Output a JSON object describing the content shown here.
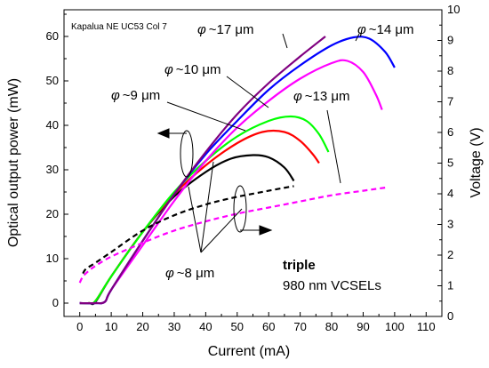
{
  "chart_data": {
    "type": "line",
    "sample_label": "Kapalua NE UC53 Col 7",
    "xlabel": "Current (mA)",
    "ylabel_left": "Optical output power (mW)",
    "ylabel_right": "Voltage (V)",
    "xlim": [
      -5,
      115
    ],
    "ylim_left": [
      -3,
      66
    ],
    "ylim_right": [
      0,
      10
    ],
    "x_ticks": [
      0,
      10,
      20,
      30,
      40,
      50,
      60,
      70,
      80,
      90,
      100,
      110
    ],
    "y_left_ticks": [
      0,
      10,
      20,
      30,
      40,
      50,
      60
    ],
    "y_right_ticks": [
      0,
      1,
      2,
      3,
      4,
      5,
      6,
      7,
      8,
      9,
      10
    ],
    "phi_symbol": "φ",
    "annotations": {
      "d8": {
        "label": "~8 μm"
      },
      "d9": {
        "label": "~9 μm"
      },
      "d10": {
        "label": "~10 μm"
      },
      "d13": {
        "label": "~13 μm"
      },
      "d14": {
        "label": "~14 μm"
      },
      "d17": {
        "label": "~17 μm"
      }
    },
    "note_line1": "triple",
    "note_line2": "980 nm VCSELs",
    "colors": {
      "d8": "#000000",
      "d9": "#ff0000",
      "d10": "#00ff00",
      "d13": "#ff00ff",
      "d14": "#0000ff",
      "d17": "#800080"
    },
    "series_power": [
      {
        "key": "d8",
        "x": [
          0,
          3,
          5,
          10,
          20,
          30,
          40,
          48,
          55,
          60,
          65,
          68
        ],
        "y": [
          0,
          0,
          0.3,
          6,
          16,
          24,
          29.5,
          32.5,
          33.3,
          32.8,
          30.5,
          27.5
        ]
      },
      {
        "key": "d9",
        "x": [
          0,
          3,
          5,
          10,
          20,
          30,
          40,
          50,
          58,
          65,
          70,
          74,
          76
        ],
        "y": [
          0,
          0,
          0.5,
          6,
          16,
          24.5,
          31,
          36,
          38.5,
          38.5,
          36.5,
          33.5,
          31.5
        ]
      },
      {
        "key": "d10",
        "x": [
          0,
          3,
          5,
          10,
          20,
          30,
          40,
          50,
          60,
          67,
          72,
          76,
          79
        ],
        "y": [
          0,
          0,
          0.5,
          6,
          16,
          25,
          32,
          37.5,
          41,
          42,
          41,
          38,
          34
        ]
      },
      {
        "key": "d13",
        "x": [
          0,
          5,
          8,
          10,
          20,
          30,
          40,
          50,
          60,
          70,
          80,
          85,
          90,
          94,
          96
        ],
        "y": [
          0,
          0,
          0.3,
          3,
          13,
          23,
          32,
          39.5,
          45.5,
          50.5,
          54,
          54.5,
          52,
          47,
          43.5
        ]
      },
      {
        "key": "d14",
        "x": [
          0,
          5,
          8,
          10,
          20,
          30,
          40,
          50,
          60,
          70,
          80,
          87,
          92,
          97,
          100
        ],
        "y": [
          0,
          0,
          0.3,
          3,
          14,
          24.5,
          33.5,
          41,
          48,
          53.5,
          58,
          59.8,
          59.5,
          56.5,
          53
        ]
      },
      {
        "key": "d17",
        "x": [
          0,
          5,
          8,
          10,
          20,
          30,
          40,
          50,
          60,
          70,
          78
        ],
        "y": [
          0,
          0,
          0.3,
          3,
          14,
          24.5,
          34,
          42.5,
          49.5,
          55.5,
          60
        ]
      }
    ],
    "series_voltage": [
      {
        "key": "d8",
        "x": [
          1,
          2,
          5,
          10,
          20,
          30,
          40,
          50,
          60,
          68
        ],
        "y": [
          1.4,
          1.55,
          1.75,
          2.1,
          2.8,
          3.3,
          3.65,
          3.9,
          4.1,
          4.25
        ]
      },
      {
        "key": "d13",
        "x": [
          0,
          1,
          3,
          5,
          10,
          20,
          30,
          40,
          50,
          60,
          70,
          80,
          90,
          97
        ],
        "y": [
          1.1,
          1.3,
          1.5,
          1.65,
          1.95,
          2.4,
          2.8,
          3.1,
          3.35,
          3.55,
          3.75,
          3.95,
          4.1,
          4.2
        ]
      }
    ]
  }
}
